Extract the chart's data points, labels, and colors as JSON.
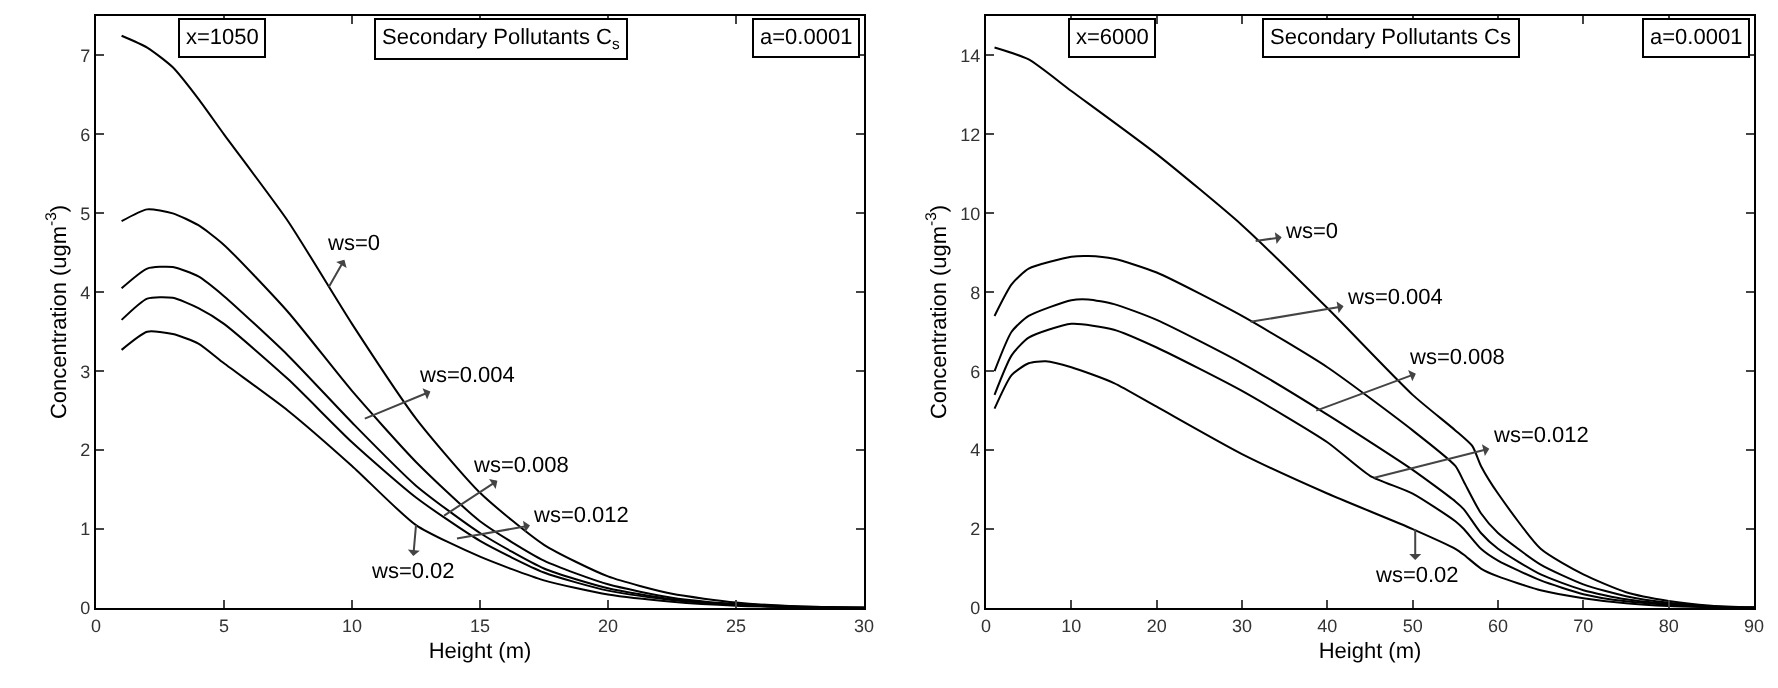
{
  "chart_data": [
    {
      "type": "line",
      "title": "Secondary Pollutants C$_{s}$",
      "xlabel": "Height (m)",
      "ylabel": "Concentration (ugm$^{-3}$)",
      "x": [
        1,
        2,
        3,
        4,
        5,
        7.5,
        10,
        12.5,
        15,
        17.5,
        20,
        22.5,
        25,
        27.5,
        30
      ],
      "series": [
        {
          "color": "#000000",
          "values": [
            7.25,
            7.1,
            6.85,
            6.45,
            6.0,
            4.9,
            3.6,
            2.4,
            1.46,
            0.8,
            0.4,
            0.18,
            0.07,
            0.02,
            0.01
          ]
        },
        {
          "color": "#000000",
          "values": [
            4.9,
            5.05,
            5.0,
            4.85,
            4.6,
            3.75,
            2.75,
            1.85,
            1.1,
            0.6,
            0.3,
            0.13,
            0.05,
            0.02,
            0.0
          ]
        },
        {
          "color": "#000000",
          "values": [
            4.05,
            4.3,
            4.32,
            4.2,
            3.95,
            3.2,
            2.35,
            1.55,
            0.95,
            0.5,
            0.25,
            0.11,
            0.04,
            0.01,
            0.0
          ]
        },
        {
          "color": "#000000",
          "values": [
            3.65,
            3.92,
            3.93,
            3.8,
            3.6,
            2.9,
            2.1,
            1.4,
            0.85,
            0.45,
            0.22,
            0.1,
            0.04,
            0.01,
            0.0
          ]
        },
        {
          "color": "#000000",
          "values": [
            3.27,
            3.5,
            3.47,
            3.35,
            3.1,
            2.5,
            1.8,
            1.05,
            0.65,
            0.35,
            0.17,
            0.08,
            0.03,
            0.01,
            0.0
          ]
        }
      ],
      "xlim": [
        0,
        30
      ],
      "xticks": [
        0,
        5,
        10,
        15,
        20,
        25,
        30
      ],
      "ylim": [
        0,
        7.5
      ],
      "yticks": [
        0,
        1,
        2,
        3,
        4,
        5,
        6,
        7
      ],
      "grid": false,
      "line_style": "solid",
      "annotations": [
        "x=1050",
        "a=0.0001",
        {
          "text": "ws=0",
          "x": 9.1,
          "y": 4.07
        },
        {
          "text": "ws=0.004",
          "x": 10.5,
          "y": 2.4
        },
        {
          "text": "ws=0.008",
          "x": 13.6,
          "y": 1.17
        },
        {
          "text": "ws=0.012",
          "x": 14.1,
          "y": 0.88
        },
        {
          "text": "ws=0.02",
          "x": 12.5,
          "y": 1.05
        }
      ]
    },
    {
      "type": "line",
      "title": "Secondary Pollutants Cs",
      "xlabel": "Height (m)",
      "ylabel": "Concentration (ugm$^{-3}$)",
      "series": [
        {
          "color": "#000000",
          "x": [
            1,
            5,
            10,
            20,
            30,
            40,
            50,
            55,
            57,
            58,
            60,
            65,
            70,
            75,
            80,
            85,
            90
          ],
          "values": [
            14.2,
            13.9,
            13.1,
            11.5,
            9.7,
            7.6,
            5.4,
            4.5,
            4.1,
            3.6,
            2.9,
            1.5,
            0.85,
            0.4,
            0.18,
            0.06,
            0.01
          ]
        },
        {
          "color": "#000000",
          "x": [
            1,
            3,
            5,
            10,
            12,
            15,
            20,
            30,
            40,
            50,
            55,
            56,
            58,
            60,
            65,
            70,
            75,
            80,
            85,
            90
          ],
          "values": [
            7.4,
            8.2,
            8.6,
            8.9,
            8.92,
            8.85,
            8.5,
            7.4,
            6.1,
            4.5,
            3.6,
            3.2,
            2.4,
            1.9,
            1.1,
            0.6,
            0.3,
            0.13,
            0.04,
            0.01
          ]
        },
        {
          "color": "#000000",
          "x": [
            1,
            3,
            5,
            10,
            12,
            15,
            20,
            30,
            40,
            50,
            55,
            56,
            58,
            60,
            65,
            70,
            75,
            80,
            85,
            90
          ],
          "values": [
            6.0,
            7.0,
            7.4,
            7.8,
            7.82,
            7.7,
            7.3,
            6.2,
            4.9,
            3.5,
            2.7,
            2.5,
            1.9,
            1.5,
            0.85,
            0.45,
            0.22,
            0.1,
            0.03,
            0.01
          ]
        },
        {
          "color": "#000000",
          "x": [
            1,
            3,
            5,
            10,
            15,
            20,
            30,
            40,
            45,
            50,
            55,
            56,
            58,
            60,
            65,
            70,
            75,
            80,
            85,
            90
          ],
          "values": [
            5.4,
            6.4,
            6.85,
            7.2,
            7.05,
            6.6,
            5.5,
            4.2,
            3.35,
            2.9,
            2.2,
            2.0,
            1.5,
            1.2,
            0.7,
            0.35,
            0.17,
            0.08,
            0.02,
            0.01
          ]
        },
        {
          "color": "#000000",
          "x": [
            1,
            3,
            5,
            7,
            10,
            15,
            20,
            30,
            40,
            50,
            55,
            56,
            58,
            60,
            65,
            70,
            75,
            80,
            85,
            90
          ],
          "values": [
            5.05,
            5.9,
            6.2,
            6.25,
            6.1,
            5.7,
            5.1,
            3.9,
            2.9,
            2.0,
            1.5,
            1.35,
            1.0,
            0.8,
            0.45,
            0.25,
            0.12,
            0.05,
            0.02,
            0.0
          ]
        }
      ],
      "xlim": [
        0,
        90
      ],
      "xticks": [
        0,
        10,
        20,
        30,
        40,
        50,
        60,
        70,
        80,
        90
      ],
      "ylim": [
        0,
        15
      ],
      "yticks": [
        0,
        2,
        4,
        6,
        8,
        10,
        12,
        14
      ],
      "grid": false,
      "line_style": "solid",
      "annotations": [
        "x=6000",
        "a=0.0001",
        {
          "text": "ws=0",
          "x": 31.6,
          "y": 9.3
        },
        {
          "text": "ws=0.004",
          "x": 31,
          "y": 7.25
        },
        {
          "text": "ws=0.008",
          "x": 38.7,
          "y": 5.0
        },
        {
          "text": "ws=0.012",
          "x": 45.5,
          "y": 3.3
        },
        {
          "text": "ws=0.02",
          "x": 50.3,
          "y": 2.0
        }
      ]
    }
  ]
}
